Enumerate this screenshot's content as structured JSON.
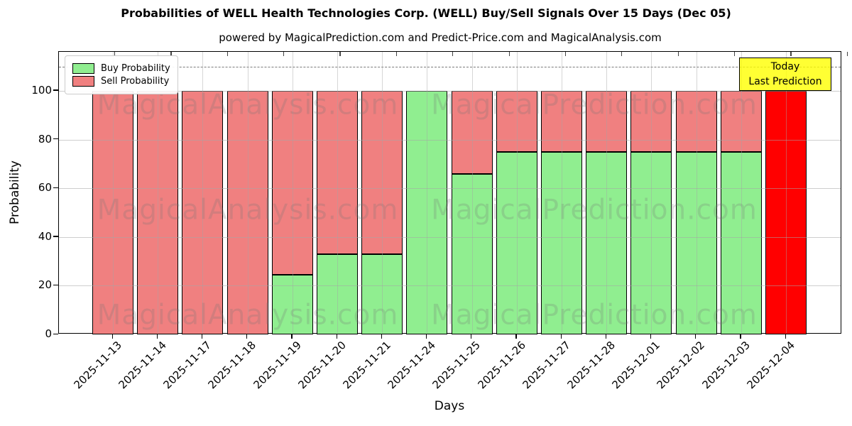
{
  "figure": {
    "title": "Probabilities of WELL Health Technologies Corp. (WELL) Buy/Sell Signals Over 15 Days (Dec 05)",
    "subtitle": "powered by MagicalPrediction.com and Predict-Price.com and MagicalAnalysis.com",
    "watermark_left": "MagicalAnalysis.com",
    "watermark_right": "MagicalPrediction.com"
  },
  "legend": {
    "items": [
      {
        "label": "Buy Probability",
        "color": "#90EE90"
      },
      {
        "label": "Sell Probability",
        "color": "#F08080"
      }
    ]
  },
  "annotation": {
    "line1": "Today",
    "line2": "Last Prediction",
    "bg_color": "#FFFF00"
  },
  "chart_data": {
    "type": "bar",
    "stacked": true,
    "title": "Probabilities of WELL Health Technologies Corp. (WELL) Buy/Sell Signals Over 15 Days (Dec 05)",
    "xlabel": "Days",
    "ylabel": "Probability",
    "categories": [
      "2025-11-13",
      "2025-11-14",
      "2025-11-17",
      "2025-11-18",
      "2025-11-19",
      "2025-11-20",
      "2025-11-21",
      "2025-11-24",
      "2025-11-25",
      "2025-11-26",
      "2025-11-27",
      "2025-11-28",
      "2025-12-01",
      "2025-12-02",
      "2025-12-03",
      "2025-12-04"
    ],
    "series": [
      {
        "name": "Buy Probability",
        "color": "#90EE90",
        "values": [
          0,
          0,
          0,
          0,
          24.5,
          33,
          33,
          100,
          66,
          75,
          75,
          75,
          75,
          75,
          75,
          0
        ]
      },
      {
        "name": "Sell Probability",
        "color": "#F08080",
        "values": [
          100,
          100,
          100,
          100,
          75.5,
          67,
          67,
          0,
          34,
          25,
          25,
          25,
          25,
          25,
          25,
          100
        ]
      }
    ],
    "today_index": 15,
    "today_color": "#FF0000",
    "yticks": [
      0,
      20,
      40,
      60,
      80,
      100
    ],
    "ylim": [
      0,
      116
    ],
    "dashed_line_y": 110,
    "grid": true,
    "legend_position": "upper left"
  }
}
